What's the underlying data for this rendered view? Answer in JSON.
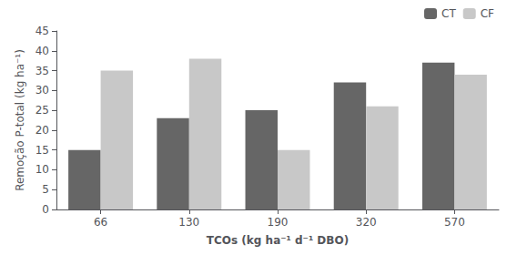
{
  "chart_data": {
    "type": "bar",
    "categories": [
      "66",
      "130",
      "190",
      "320",
      "570"
    ],
    "series": [
      {
        "name": "CT",
        "color": "#666666",
        "values": [
          15,
          23,
          25,
          32,
          37
        ]
      },
      {
        "name": "CF",
        "color": "#c8c8c8",
        "values": [
          35,
          38,
          15,
          26,
          34
        ]
      }
    ],
    "xlabel": "TCOs (kg ha⁻¹ d⁻¹ DBO)",
    "ylabel": "Remoção P-total (kg ha⁻¹)",
    "ylim": [
      0,
      45
    ],
    "yticks": [
      0,
      5,
      10,
      15,
      20,
      25,
      30,
      35,
      40,
      45
    ],
    "grid": false,
    "legend": "upper right",
    "background_color": "#ffffff"
  }
}
